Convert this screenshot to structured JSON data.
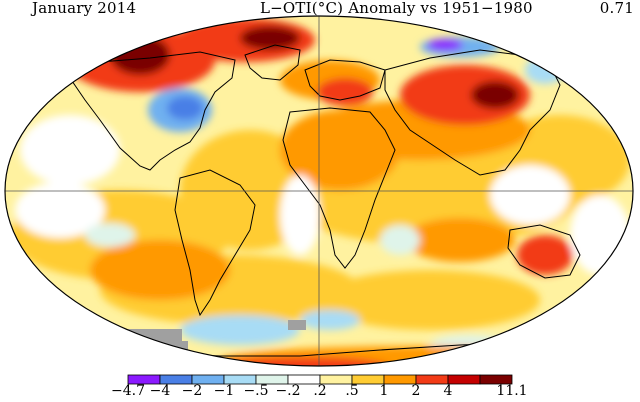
{
  "header": {
    "left": "January 2014",
    "center": "L−OTI(°C) Anomaly vs 1951−1980",
    "right": "0.71"
  },
  "legend": {
    "colors": [
      "#8b1aff",
      "#4a7fe6",
      "#6fb0f0",
      "#a8dcf5",
      "#dff4ea",
      "#ffffff",
      "#fff2a0",
      "#ffcc33",
      "#ff9900",
      "#f23b16",
      "#c40000",
      "#7a0000"
    ],
    "labels": [
      "−4.7",
      "−4",
      "−2",
      "−1",
      "−.5",
      "−.2",
      ".2",
      ".5",
      "1",
      "2",
      "4",
      "11.1"
    ]
  },
  "map": {
    "land_outline_color": "#000000",
    "missing_data_color": "#a0a0a0"
  }
}
